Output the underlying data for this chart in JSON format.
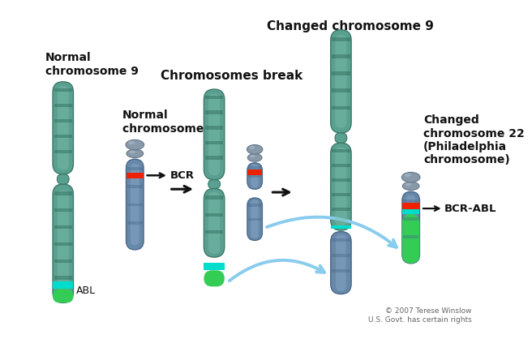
{
  "bg_color": "#ffffff",
  "chr9_light": "#7abfaa",
  "chr9_mid": "#5aa090",
  "chr9_dark": "#3a7868",
  "chr9_stripe": "#2a6858",
  "chr22_light": "#8aaac8",
  "chr22_mid": "#6888aa",
  "chr22_dark": "#486888",
  "chr22_body_light": "#7090b0",
  "centromere_light": "#aabbcc",
  "centromere_mid": "#8899aa",
  "centromere_dark": "#667788",
  "abl_cyan": "#00ddcc",
  "abl_green": "#33cc55",
  "bcr_red": "#ee2200",
  "arrow_black": "#111111",
  "arrow_blue": "#88ccee",
  "text_color": "#111111",
  "copyright_color": "#666666",
  "label_normal_chr9": "Normal\nchromosome 9",
  "label_normal_chr22": "Normal\nchromosome 22",
  "label_break": "Chromosomes break",
  "label_changed_chr9": "Changed chromosome 9",
  "label_changed_chr22": "Changed\nchromosome 22\n(Philadelphia\nchromosome)",
  "label_bcr": "BCR",
  "label_abl": "ABL",
  "label_bcrabl": "BCR-ABL",
  "copyright": "© 2007 Terese Winslow\nU.S. Govt. has certain rights"
}
